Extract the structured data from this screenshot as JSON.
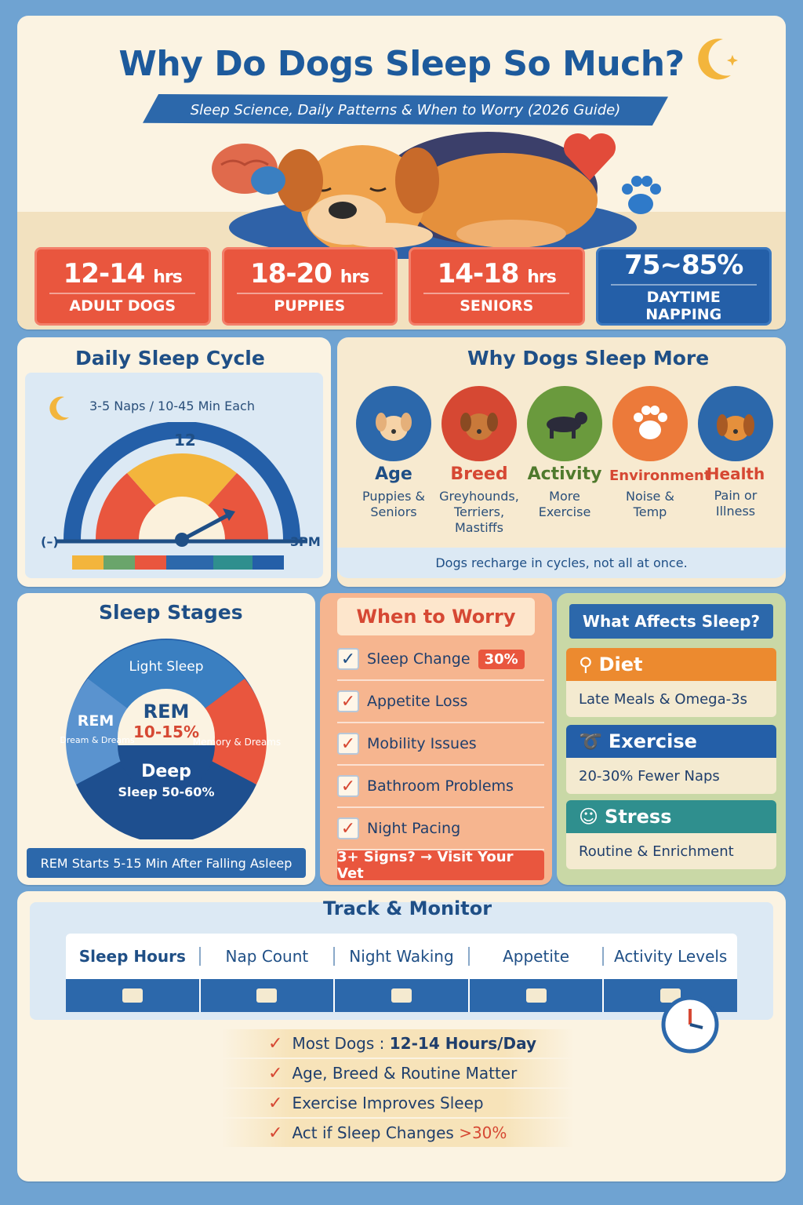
{
  "header": {
    "title": "Why Do Dogs Sleep So Much?",
    "subtitle": "Sleep Science, Daily Patterns & When to Worry (2026 Guide)"
  },
  "stats": [
    {
      "value": "12-14",
      "unit": "hrs",
      "label": "ADULT DOGS",
      "color": "#e9563e"
    },
    {
      "value": "18-20",
      "unit": "hrs",
      "label": "PUPPIES",
      "color": "#e9563e"
    },
    {
      "value": "14-18",
      "unit": "hrs",
      "label": "SENIORS",
      "color": "#e9563e"
    },
    {
      "value": "75~85%",
      "unit": "",
      "label": "DAYTIME NAPPING",
      "color": "#245fa8"
    }
  ],
  "cycle": {
    "title": "Daily Sleep Cycle",
    "naps": "3-5 Naps / 10-45 Min Each",
    "dial_top": "12",
    "dial_right": "3PM",
    "dial_left": "(–)"
  },
  "why": {
    "title": "Why Dogs Sleep More",
    "reasons": [
      {
        "name": "Age",
        "desc": "Puppies & Seniors",
        "color": "#1f4f86"
      },
      {
        "name": "Breed",
        "desc": "Greyhounds, Terriers, Mastiffs",
        "color": "#d64833"
      },
      {
        "name": "Activity",
        "desc": "More Exercise",
        "color": "#4f7a2d"
      },
      {
        "name": "Environment",
        "desc": "Noise & Temp",
        "color": "#d64833"
      },
      {
        "name": "Health",
        "desc": "Pain or Illness",
        "color": "#d64833"
      }
    ],
    "note": "Dogs recharge in cycles, not all at once."
  },
  "stages": {
    "title": "Sleep Stages",
    "light": "Light Sleep",
    "rem_left": "REM",
    "rem_left_sub": "Dream & Dreams",
    "center_rem": "REM",
    "center_pct": "10-15%",
    "right_sub": "Memory & Dreams",
    "deep": "Deep",
    "deep_pct": "Sleep 50-60%",
    "footer": "REM Starts 5-15 Min After Falling Asleep"
  },
  "worry": {
    "title": "When to Worry",
    "items": [
      {
        "label": "Sleep Change",
        "badge": "30%"
      },
      {
        "label": "Appetite Loss",
        "badge": ""
      },
      {
        "label": "Mobility Issues",
        "badge": ""
      },
      {
        "label": "Bathroom Problems",
        "badge": ""
      },
      {
        "label": "Night Pacing",
        "badge": ""
      }
    ],
    "footer": "3+ Signs? → Visit Your Vet"
  },
  "affects": {
    "title": "What Affects Sleep?",
    "items": [
      {
        "name": "Diet",
        "desc": "Late Meals & Omega-3s",
        "color": "#ec8a2f"
      },
      {
        "name": "Exercise",
        "desc": "20-30% Fewer Naps",
        "color": "#245fa8"
      },
      {
        "name": "Stress",
        "desc": "Routine & Enrichment",
        "color": "#2f8f8e"
      }
    ]
  },
  "track": {
    "title": "Track & Monitor",
    "columns": [
      "Sleep Hours",
      "Nap Count",
      "Night Waking",
      "Appetite",
      "Activity Levels"
    ],
    "summary": [
      {
        "prefix": "Most Dogs : ",
        "bold": "12-14 Hours/Day"
      },
      {
        "prefix": "Age, Breed & Routine Matter",
        "bold": ""
      },
      {
        "prefix": "Exercise Improves Sleep",
        "bold": ""
      },
      {
        "prefix": "Act if Sleep Changes ",
        "bold": ">30%"
      }
    ]
  }
}
